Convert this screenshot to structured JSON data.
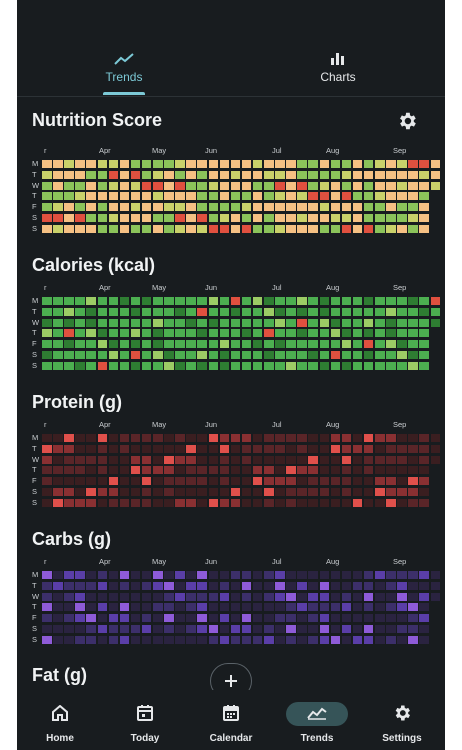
{
  "tabs": [
    {
      "label": "Trends",
      "icon": "trend-line-icon",
      "active": true
    },
    {
      "label": "Charts",
      "icon": "bar-chart-icon",
      "active": false
    }
  ],
  "months": [
    "r",
    "Apr",
    "May",
    "Jun",
    "Jul",
    "Aug",
    "Sep"
  ],
  "weekdays": [
    "M",
    "T",
    "W",
    "T",
    "F",
    "S",
    "S"
  ],
  "sections": [
    {
      "key": "nutrition",
      "title": "Nutrition Score",
      "palette": "score",
      "pattern": [
        0,
        0,
        1,
        2,
        0,
        3,
        1,
        0,
        2,
        1,
        0,
        0,
        1,
        0,
        2,
        3,
        1,
        0,
        0,
        2,
        1,
        0,
        3,
        1,
        0,
        2,
        0,
        1,
        0,
        0,
        2,
        1,
        0,
        1,
        0,
        2,
        3,
        0,
        1,
        0,
        0,
        1,
        2,
        1,
        0,
        3,
        0,
        1,
        2,
        0,
        1,
        0,
        0,
        1
      ]
    },
    {
      "key": "calories",
      "title": "Calories (kcal)",
      "palette": "green",
      "pattern": [
        0,
        1,
        0,
        0,
        2,
        0,
        1,
        0,
        0,
        0,
        3,
        1,
        0,
        0,
        2,
        0,
        1,
        0,
        0,
        0,
        1,
        0,
        2,
        0,
        0,
        1,
        0,
        0,
        3,
        0,
        0,
        1,
        0,
        2,
        0,
        0,
        1,
        0,
        0,
        1,
        0,
        0,
        2,
        0,
        1,
        0,
        0,
        0
      ]
    },
    {
      "key": "protein",
      "title": "Protein (g)",
      "palette": "red",
      "pattern": [
        1,
        0,
        2,
        0,
        1,
        3,
        0,
        0,
        1,
        2,
        0,
        1,
        0,
        3,
        1,
        0,
        2,
        0,
        0,
        1,
        2,
        0,
        1,
        0,
        3,
        0,
        1,
        2,
        0,
        0,
        1,
        0,
        2,
        1,
        0,
        3,
        0,
        1,
        0,
        2
      ]
    },
    {
      "key": "carbs",
      "title": "Carbs (g)",
      "palette": "purple",
      "pattern": [
        0,
        1,
        2,
        0,
        0,
        3,
        1,
        0,
        2,
        0,
        1,
        0,
        0,
        2,
        1,
        3,
        0,
        0,
        1,
        2,
        0,
        1,
        0,
        0,
        3,
        2,
        0,
        1,
        0,
        2,
        0,
        0,
        1,
        3,
        0,
        1,
        2,
        0,
        0,
        1
      ]
    },
    {
      "key": "fat",
      "title": "Fat (g)",
      "palette": "none",
      "pattern": []
    }
  ],
  "colors": {
    "score": [
      "#f5c083",
      "#8bc35a",
      "#c9d16a",
      "#e0503f"
    ],
    "green": [
      "#4caf50",
      "#2e7d32",
      "#9ccc65",
      "#e0503f"
    ],
    "red": [
      "#3a1e20",
      "#5a2528",
      "#8a3032",
      "#e0504b"
    ],
    "purple": [
      "#2a2340",
      "#3c2f6a",
      "#5a3ea8",
      "#8e5bd8"
    ]
  },
  "fab": {
    "icon": "plus-icon"
  },
  "nav": [
    {
      "label": "Home",
      "icon": "home-icon"
    },
    {
      "label": "Today",
      "icon": "today-calendar-icon"
    },
    {
      "label": "Calendar",
      "icon": "calendar-icon"
    },
    {
      "label": "Trends",
      "icon": "trends-icon",
      "active": true
    },
    {
      "label": "Settings",
      "icon": "gear-icon"
    }
  ]
}
